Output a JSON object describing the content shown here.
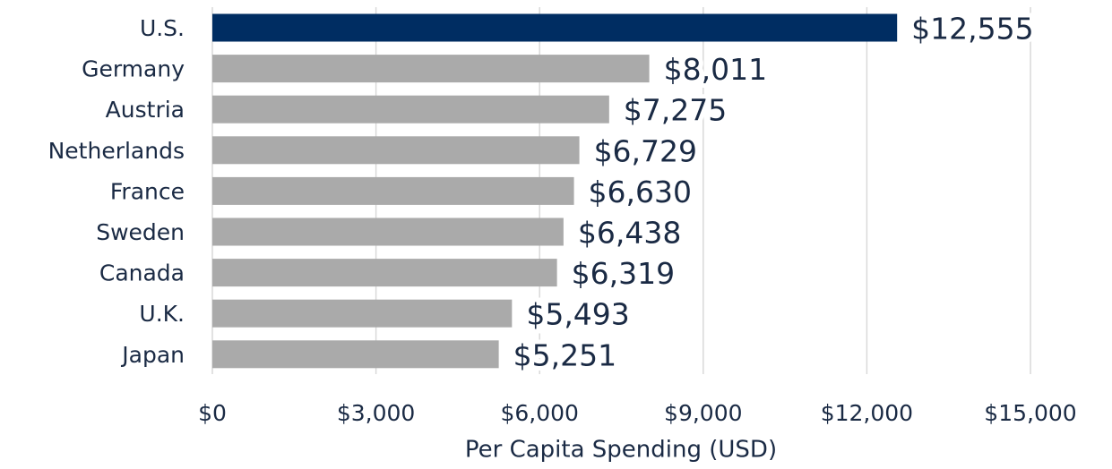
{
  "chart_data": {
    "type": "bar",
    "xlabel": "Per Capita Spending (USD)",
    "categories": [
      "U.S.",
      "Germany",
      "Austria",
      "Netherlands",
      "France",
      "Sweden",
      "Canada",
      "U.K.",
      "Japan"
    ],
    "values": [
      12555,
      8011,
      7275,
      6729,
      6630,
      6438,
      6319,
      5493,
      5251
    ],
    "value_labels": [
      "$12,555",
      "$8,011",
      "$7,275",
      "$6,729",
      "$6,630",
      "$6,438",
      "$6,319",
      "$5,493",
      "$5,251"
    ],
    "colors": [
      "#002d62",
      "#aaaaaa",
      "#aaaaaa",
      "#aaaaaa",
      "#aaaaaa",
      "#aaaaaa",
      "#aaaaaa",
      "#aaaaaa",
      "#aaaaaa"
    ],
    "xlim": [
      0,
      15000
    ],
    "xticks": [
      {
        "value": 0,
        "label": "$0"
      },
      {
        "value": 3000,
        "label": "$3,000"
      },
      {
        "value": 6000,
        "label": "$6,000"
      },
      {
        "value": 9000,
        "label": "$9,000"
      },
      {
        "value": 12000,
        "label": "$12,000"
      },
      {
        "value": 15000,
        "label": "$15,000"
      }
    ],
    "grid": true
  }
}
